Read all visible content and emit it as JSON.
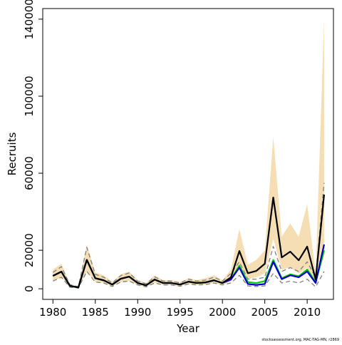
{
  "chart_data": {
    "type": "line",
    "xlabel": "Year",
    "ylabel": "Recruits",
    "footnote": "stocksassessment.org, MAC-TAG-MN, r2869",
    "x": [
      1980,
      1981,
      1982,
      1983,
      1984,
      1985,
      1986,
      1987,
      1988,
      1989,
      1990,
      1991,
      1992,
      1993,
      1994,
      1995,
      1996,
      1997,
      1998,
      1999,
      2000,
      2001,
      2002,
      2003,
      2004,
      2005,
      2006,
      2007,
      2008,
      2009,
      2010,
      2011,
      2012
    ],
    "xlim": [
      1978.8,
      2013.1
    ],
    "xticks": [
      1980,
      1985,
      1990,
      1995,
      2000,
      2005,
      2010
    ],
    "ylim": [
      -5500,
      145500
    ],
    "yticks": [
      0,
      20000,
      60000,
      100000,
      140000
    ],
    "band": {
      "color": "#f5deb3",
      "upper": [
        10000,
        13000,
        2500,
        1200,
        23000,
        8500,
        7000,
        3500,
        7500,
        9000,
        4500,
        3000,
        7000,
        4500,
        4500,
        3500,
        5500,
        4500,
        5500,
        7000,
        4500,
        10000,
        31000,
        12500,
        15000,
        20000,
        79000,
        27000,
        34000,
        27000,
        44000,
        8000,
        140000
      ],
      "lower": [
        4000,
        6000,
        800,
        400,
        9000,
        3500,
        3000,
        1200,
        3500,
        4000,
        2000,
        1000,
        3000,
        2000,
        2000,
        1300,
        2500,
        2000,
        2200,
        3000,
        2000,
        3800,
        12000,
        5000,
        6000,
        8000,
        26000,
        10000,
        11000,
        8000,
        11000,
        2500,
        17000
      ]
    },
    "series": [
      {
        "color": "#808080",
        "dashed": true,
        "values": [
          8500,
          11500,
          2200,
          1000,
          21500,
          7500,
          6000,
          3000,
          6800,
          8200,
          4000,
          2600,
          6200,
          4000,
          4000,
          3000,
          5000,
          4000,
          4500,
          6000,
          4000,
          8000,
          14000,
          5000,
          5000,
          6000,
          22000,
          9000,
          11000,
          9000,
          14000,
          6000,
          55000
        ]
      },
      {
        "color": "#808080",
        "dashed": true,
        "values": [
          4000,
          6000,
          800,
          400,
          9000,
          3500,
          3000,
          1200,
          3500,
          4000,
          2000,
          1000,
          3000,
          2000,
          2000,
          1300,
          2500,
          2000,
          2200,
          3000,
          2000,
          3000,
          7000,
          1500,
          1200,
          1500,
          8000,
          3000,
          4000,
          3000,
          5000,
          1000,
          9000
        ]
      },
      {
        "color": "#00cc00",
        "dashed": false,
        "values": [
          6700,
          8900,
          1500,
          700,
          15000,
          5500,
          4400,
          2200,
          5200,
          6300,
          3000,
          1800,
          4800,
          3000,
          3000,
          2200,
          3700,
          3000,
          3300,
          4400,
          3000,
          5000,
          12000,
          3500,
          3000,
          4000,
          15000,
          5500,
          7500,
          6500,
          10000,
          3500,
          20000
        ]
      },
      {
        "color": "#0000cc",
        "dashed": false,
        "values": [
          6700,
          8900,
          1500,
          700,
          15000,
          5500,
          4400,
          2200,
          5200,
          6300,
          3000,
          1800,
          4800,
          3000,
          3000,
          2200,
          3700,
          3000,
          3300,
          4400,
          3000,
          4800,
          11000,
          2500,
          2000,
          2500,
          14000,
          5000,
          7000,
          6000,
          9000,
          3000,
          23000
        ]
      },
      {
        "color": "#000000",
        "dashed": false,
        "values": [
          6700,
          8900,
          1500,
          700,
          15000,
          5500,
          4400,
          2200,
          5200,
          6300,
          3000,
          1800,
          4800,
          3000,
          3000,
          2200,
          3700,
          3000,
          3300,
          4400,
          3000,
          5900,
          19600,
          8100,
          9300,
          13000,
          47400,
          16300,
          19300,
          14800,
          21900,
          4800,
          48900
        ]
      }
    ]
  }
}
